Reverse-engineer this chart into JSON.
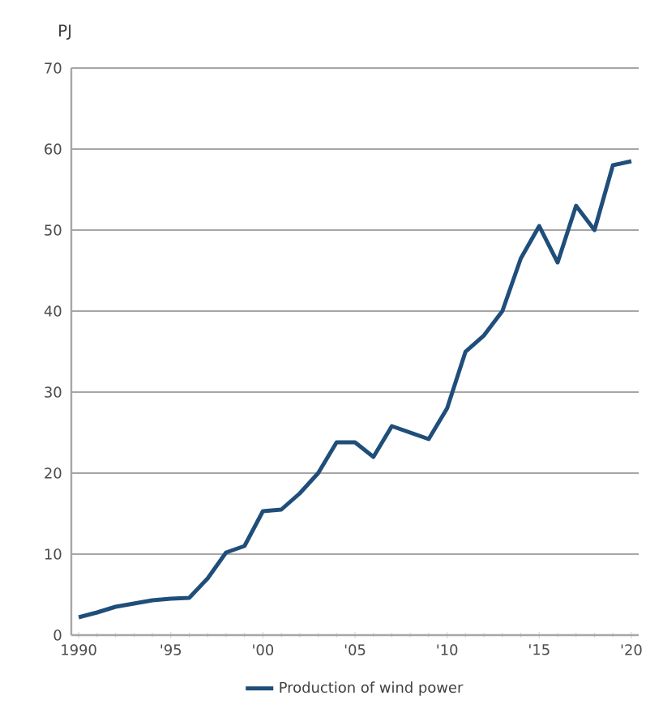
{
  "chart_data": {
    "type": "line",
    "ylabel": "PJ",
    "x": [
      1990,
      1991,
      1992,
      1993,
      1994,
      1995,
      1996,
      1997,
      1998,
      1999,
      2000,
      2001,
      2002,
      2003,
      2004,
      2005,
      2006,
      2007,
      2008,
      2009,
      2010,
      2011,
      2012,
      2013,
      2014,
      2015,
      2016,
      2017,
      2018,
      2019,
      2020
    ],
    "series": [
      {
        "name": "Production of wind power",
        "color": "#1f4e7a",
        "values": [
          2.2,
          2.8,
          3.5,
          3.9,
          4.3,
          4.5,
          4.6,
          7,
          10.2,
          11,
          15.3,
          15.5,
          17.5,
          20,
          23.8,
          23.8,
          22,
          25.8,
          25,
          24.2,
          28,
          35,
          37,
          40,
          46.5,
          50.5,
          46,
          53,
          50,
          58,
          58.5
        ]
      }
    ],
    "xlim": [
      1989.6,
      2020.4
    ],
    "xticks": [
      {
        "value": 1990,
        "label": "1990"
      },
      {
        "value": 1995,
        "label": "'95"
      },
      {
        "value": 2000,
        "label": "'00"
      },
      {
        "value": 2005,
        "label": "'05"
      },
      {
        "value": 2010,
        "label": "'10"
      },
      {
        "value": 2015,
        "label": "'15"
      },
      {
        "value": 2020,
        "label": "'20"
      }
    ],
    "ylim": [
      0,
      70
    ],
    "yticks": [
      0,
      10,
      20,
      30,
      40,
      50,
      60,
      70
    ],
    "grid": "y",
    "legend": "bottom",
    "marker": "none",
    "line_style": "solid"
  }
}
